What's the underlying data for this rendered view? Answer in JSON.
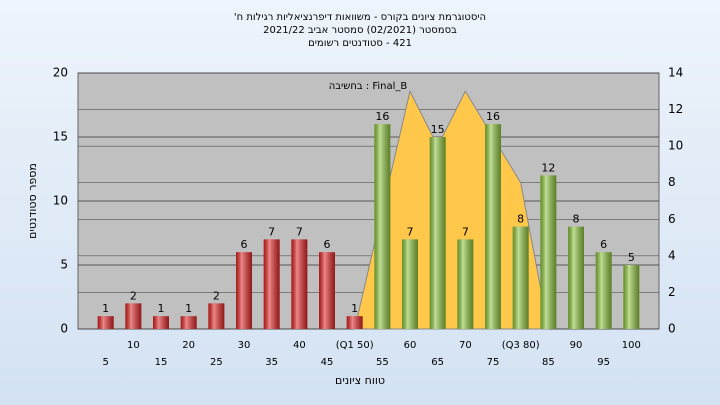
{
  "chart_data": {
    "type": "bar",
    "title_lines": [
      "היסטוגרמת ציונים בקורס - משוואות דיפרנציאליות רגילות ח'",
      "בסמסטר  (02/2021)  סמסטר אביב 2021/22",
      "421 - סטודנטים רשומים"
    ],
    "annotation": "בחשיבה : Final_B",
    "x_label": "טווח ציונים",
    "y_label": "מספר סטודנטים",
    "categories": [
      "5",
      "10",
      "15",
      "20",
      "25",
      "30",
      "35",
      "40",
      "45",
      "(Q1 50)",
      "55",
      "60",
      "65",
      "70",
      "75",
      "(Q3 80)",
      "85",
      "90",
      "95",
      "100"
    ],
    "values": [
      1,
      2,
      1,
      1,
      2,
      6,
      7,
      7,
      6,
      1,
      16,
      7,
      15,
      7,
      16,
      8,
      12,
      8,
      6,
      5
    ],
    "bar_colors": [
      "#e02626",
      "#e02626",
      "#e02626",
      "#e02626",
      "#e02626",
      "#e02626",
      "#e02626",
      "#e02626",
      "#e02626",
      "#e02626",
      "#8dc43e",
      "#8dc43e",
      "#8dc43e",
      "#8dc43e",
      "#8dc43e",
      "#8dc43e",
      "#8dc43e",
      "#8dc43e",
      "#8dc43e",
      "#8dc43e"
    ],
    "area": {
      "name": "Final_B",
      "color": "#ffc84a",
      "axis": "y2",
      "x": [
        50,
        60,
        65,
        70,
        80,
        85
      ],
      "values": [
        0,
        13,
        10,
        13,
        8,
        0
      ]
    },
    "ylim": [
      0,
      20
    ],
    "yticks": [
      0,
      5,
      10,
      15,
      20
    ],
    "y2lim": [
      0,
      14
    ],
    "y2ticks": [
      0,
      2,
      4,
      6,
      8,
      10,
      12,
      14
    ],
    "grid": true
  }
}
